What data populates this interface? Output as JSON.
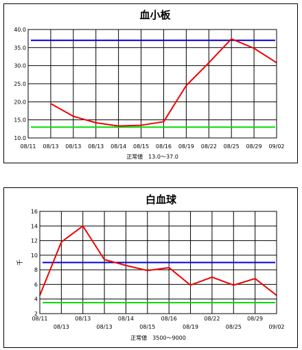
{
  "chart_data": [
    {
      "type": "line",
      "title": "血小板",
      "categories": [
        "08/11",
        "08/13",
        "08/13",
        "08/13",
        "08/14",
        "08/15",
        "08/16",
        "08/19",
        "08/22",
        "08/25",
        "08/29",
        "09/02"
      ],
      "series": [
        {
          "values": [
            null,
            19.5,
            16.0,
            14.2,
            13.3,
            13.5,
            14.5,
            24.5,
            30.8,
            37.4,
            34.8,
            30.8
          ],
          "color": "#ee0000"
        }
      ],
      "reference_lines": [
        {
          "value": 37.0,
          "color": "#0000cc"
        },
        {
          "value": 13.0,
          "color": "#00dd00"
        }
      ],
      "ylim": [
        10.0,
        40.0
      ],
      "yticks": [
        "10.0",
        "15.0",
        "20.0",
        "25.0",
        "30.0",
        "35.0",
        "40.0"
      ],
      "ylabel": "",
      "note": "正常値　13.0〜37.0",
      "grid": true
    },
    {
      "type": "line",
      "title": "白血球",
      "categories": [
        "08/11",
        "08/13",
        "08/13",
        "08/13",
        "08/14",
        "08/15",
        "08/16",
        "08/19",
        "08/22",
        "08/25",
        "08/29",
        "09/02"
      ],
      "series": [
        {
          "values": [
            4.5,
            11.8,
            14.0,
            9.4,
            8.6,
            7.9,
            8.3,
            5.9,
            7.0,
            5.9,
            6.8,
            4.5
          ],
          "color": "#ee0000"
        }
      ],
      "reference_lines": [
        {
          "value": 9.0,
          "color": "#0000cc"
        },
        {
          "value": 3.5,
          "color": "#00dd00"
        }
      ],
      "ylim": [
        2,
        16
      ],
      "yticks": [
        "2",
        "4",
        "6",
        "8",
        "10",
        "12",
        "14",
        "16"
      ],
      "ylabel": "千",
      "note": "正常値　3500〜9000",
      "grid": true
    }
  ]
}
